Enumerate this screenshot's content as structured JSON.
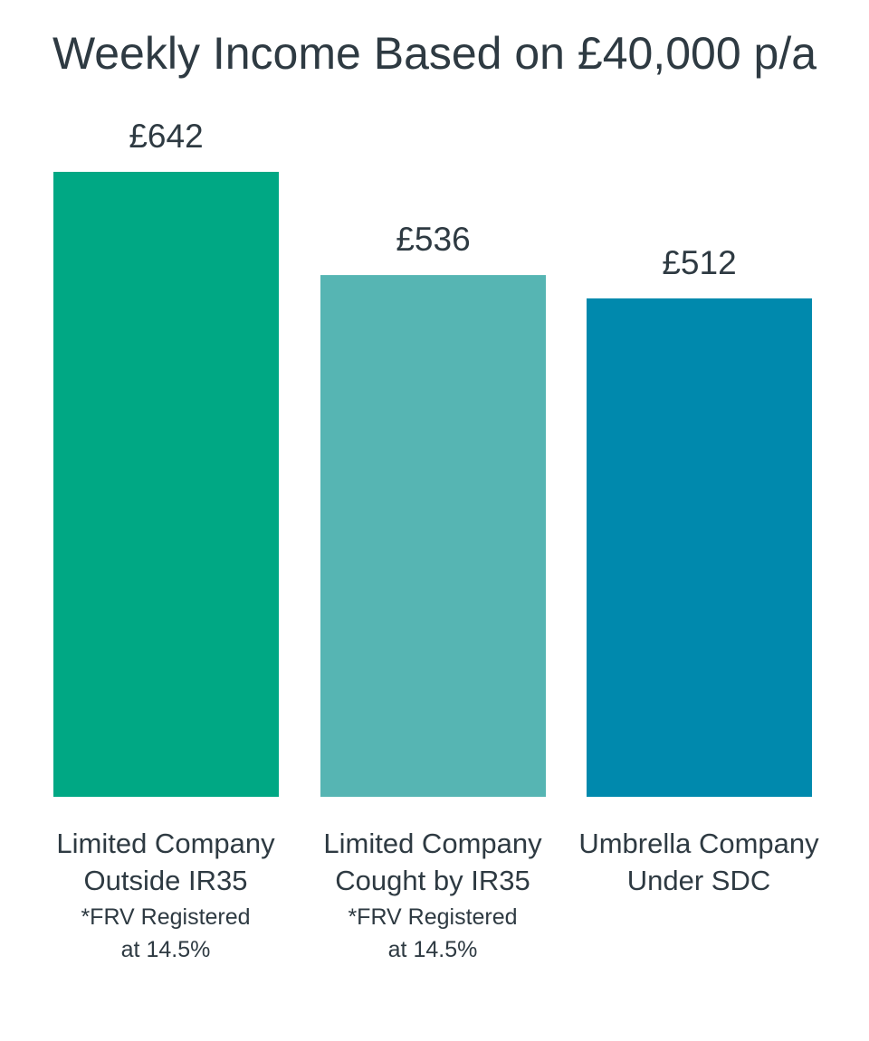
{
  "chart_data": {
    "type": "bar",
    "title": "Weekly Income Based on £40,000 p/a",
    "xlabel": "",
    "ylabel": "",
    "ylim": [
      0,
      642
    ],
    "grid": false,
    "legend": "none",
    "categories": [
      "Limited Company Outside IR35",
      "Limited Company Cought by IR35",
      "Umbrella Company Under SDC"
    ],
    "values": [
      642,
      536,
      512
    ],
    "value_labels": [
      "£642",
      "£536",
      "£512"
    ],
    "colors": [
      "#00a884",
      "#56b5b3",
      "#0089ad"
    ],
    "category_labels": [
      {
        "line1": "Limited Company",
        "line2": "Outside IR35",
        "note1": "*FRV Registered",
        "note2": "at 14.5%"
      },
      {
        "line1": "Limited Company",
        "line2": "Cought by IR35",
        "note1": "*FRV Registered",
        "note2": "at 14.5%"
      },
      {
        "line1": "Umbrella Company",
        "line2": "Under SDC",
        "note1": "",
        "note2": ""
      }
    ]
  }
}
